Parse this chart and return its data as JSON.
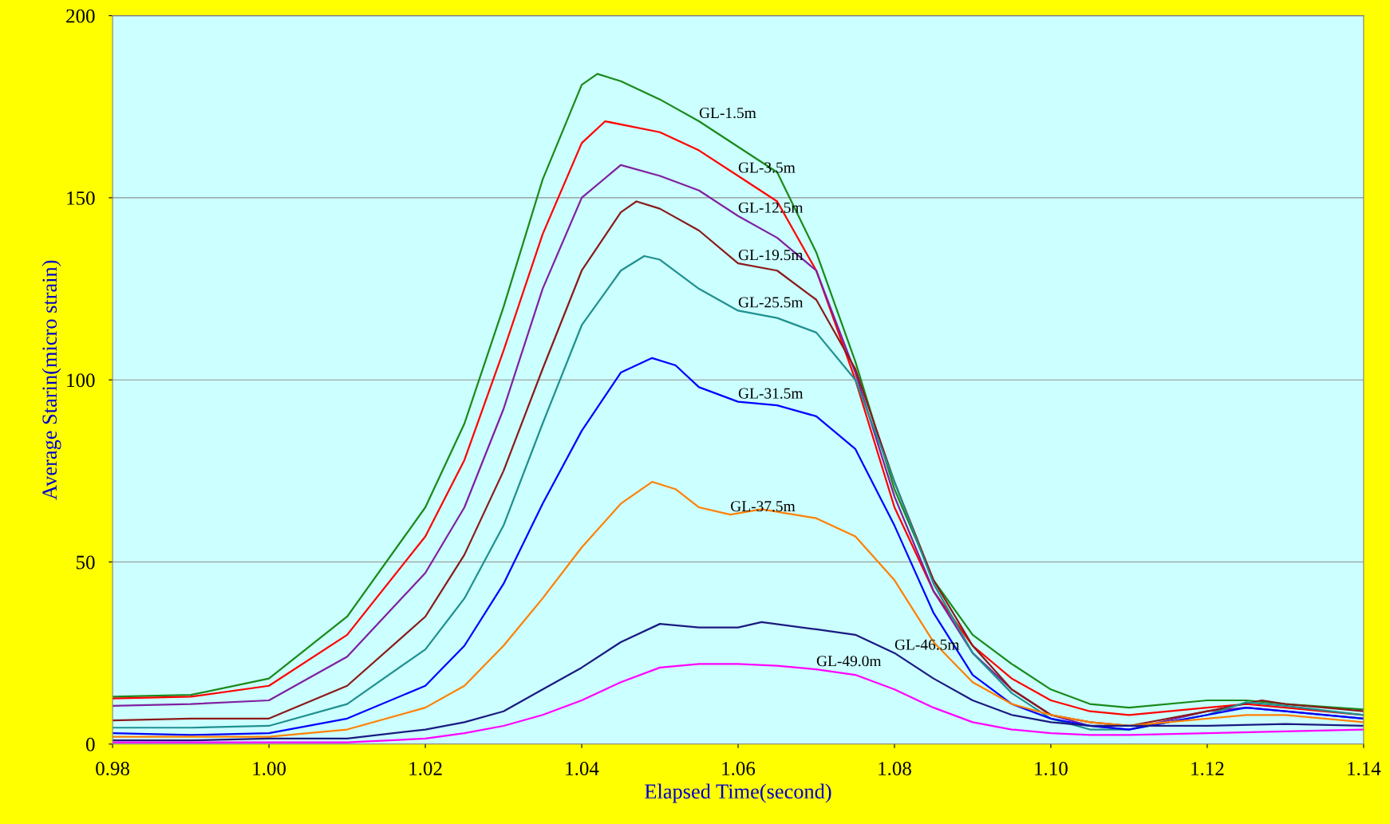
{
  "chart_data": {
    "type": "line",
    "xlabel": "Elapsed Time(second)",
    "ylabel": "Average Starin(micro strain)",
    "xlim": [
      0.98,
      1.14
    ],
    "ylim": [
      0,
      200
    ],
    "xticks": [
      {
        "value": 0.98,
        "label": "0.98"
      },
      {
        "value": 1.0,
        "label": "1.00"
      },
      {
        "value": 1.02,
        "label": "1.02"
      },
      {
        "value": 1.04,
        "label": "1.04"
      },
      {
        "value": 1.06,
        "label": "1.06"
      },
      {
        "value": 1.08,
        "label": "1.08"
      },
      {
        "value": 1.1,
        "label": "1.10"
      },
      {
        "value": 1.12,
        "label": "1.12"
      },
      {
        "value": 1.14,
        "label": "1.14"
      }
    ],
    "yticks": [
      0,
      50,
      100,
      150,
      200
    ],
    "grid": "y",
    "legend": false,
    "marker": "none",
    "line_style": "solid",
    "series": [
      {
        "name": "GL-1.5m",
        "color": "#1a8a1a",
        "x": [
          0.98,
          0.99,
          1.0,
          1.01,
          1.02,
          1.025,
          1.03,
          1.035,
          1.04,
          1.042,
          1.045,
          1.05,
          1.055,
          1.06,
          1.065,
          1.07,
          1.075,
          1.08,
          1.085,
          1.09,
          1.095,
          1.1,
          1.105,
          1.11,
          1.12,
          1.125,
          1.13,
          1.14
        ],
        "values": [
          13,
          13.5,
          18,
          35,
          65,
          88,
          120,
          155,
          181,
          184,
          182,
          177,
          171,
          164,
          157,
          135,
          105,
          70,
          45,
          30,
          22,
          15,
          11,
          10,
          12,
          12,
          11,
          9.5
        ]
      },
      {
        "name": "GL-3.5m",
        "color": "#ff0000",
        "x": [
          0.98,
          0.99,
          1.0,
          1.01,
          1.02,
          1.025,
          1.03,
          1.035,
          1.04,
          1.043,
          1.05,
          1.055,
          1.06,
          1.065,
          1.07,
          1.075,
          1.08,
          1.085,
          1.09,
          1.095,
          1.1,
          1.105,
          1.11,
          1.12,
          1.125,
          1.13,
          1.14
        ],
        "values": [
          12.5,
          13,
          16,
          30,
          57,
          78,
          108,
          140,
          165,
          171,
          168,
          163,
          156,
          149,
          130,
          100,
          65,
          42,
          27,
          18,
          12,
          9,
          8,
          10,
          11,
          10,
          8
        ]
      },
      {
        "name": "GL-12.5m",
        "color": "#8020a0",
        "x": [
          0.98,
          0.99,
          1.0,
          1.01,
          1.02,
          1.025,
          1.03,
          1.035,
          1.04,
          1.045,
          1.05,
          1.055,
          1.06,
          1.065,
          1.07,
          1.075,
          1.08,
          1.085,
          1.09,
          1.095,
          1.1,
          1.105,
          1.11,
          1.12,
          1.125,
          1.13,
          1.14
        ],
        "values": [
          10.5,
          11,
          12,
          24,
          47,
          65,
          92,
          125,
          150,
          159,
          156,
          152,
          145,
          139,
          130,
          102,
          68,
          42,
          25,
          15,
          8,
          5,
          4,
          9,
          10,
          9,
          7
        ]
      },
      {
        "name": "GL-19.5m",
        "color": "#8b1a1a",
        "x": [
          0.98,
          0.99,
          1.0,
          1.01,
          1.02,
          1.025,
          1.03,
          1.035,
          1.04,
          1.045,
          1.047,
          1.05,
          1.055,
          1.06,
          1.065,
          1.07,
          1.075,
          1.08,
          1.085,
          1.09,
          1.095,
          1.1,
          1.105,
          1.11,
          1.12,
          1.127,
          1.13,
          1.14
        ],
        "values": [
          6.5,
          7,
          7,
          16,
          35,
          52,
          75,
          103,
          130,
          146,
          149,
          147,
          141,
          132,
          130,
          122,
          103,
          72,
          45,
          27,
          15,
          8,
          6,
          5,
          9,
          12,
          11,
          9
        ]
      },
      {
        "name": "GL-25.5m",
        "color": "#209090",
        "x": [
          0.98,
          0.99,
          1.0,
          1.01,
          1.02,
          1.025,
          1.03,
          1.035,
          1.04,
          1.045,
          1.048,
          1.05,
          1.055,
          1.06,
          1.065,
          1.07,
          1.075,
          1.08,
          1.085,
          1.09,
          1.095,
          1.1,
          1.105,
          1.11,
          1.12,
          1.125,
          1.13,
          1.14
        ],
        "values": [
          4.5,
          4.5,
          5,
          11,
          26,
          40,
          60,
          88,
          115,
          130,
          134,
          133,
          125,
          119,
          117,
          113,
          100,
          72,
          44,
          25,
          14,
          7,
          4,
          4,
          8,
          11.5,
          10.5,
          8
        ]
      },
      {
        "name": "GL-31.5m",
        "color": "#0000ff",
        "x": [
          0.98,
          0.99,
          1.0,
          1.01,
          1.02,
          1.025,
          1.03,
          1.035,
          1.04,
          1.045,
          1.049,
          1.052,
          1.055,
          1.06,
          1.065,
          1.07,
          1.075,
          1.08,
          1.085,
          1.09,
          1.095,
          1.1,
          1.105,
          1.11,
          1.12,
          1.125,
          1.13,
          1.14
        ],
        "values": [
          3,
          2.5,
          3,
          7,
          16,
          27,
          44,
          66,
          86,
          102,
          106,
          104,
          98,
          94,
          93,
          90,
          81,
          60,
          36,
          19,
          11,
          7,
          5,
          4,
          8,
          10,
          9,
          7
        ]
      },
      {
        "name": "GL-37.5m",
        "color": "#ff8000",
        "x": [
          0.98,
          0.99,
          1.0,
          1.01,
          1.02,
          1.025,
          1.03,
          1.035,
          1.04,
          1.045,
          1.049,
          1.052,
          1.055,
          1.059,
          1.063,
          1.07,
          1.075,
          1.08,
          1.085,
          1.09,
          1.095,
          1.1,
          1.105,
          1.11,
          1.12,
          1.125,
          1.13,
          1.14
        ],
        "values": [
          2,
          2,
          2,
          4,
          10,
          16,
          27,
          40,
          54,
          66,
          72,
          70,
          65,
          63,
          64.5,
          62,
          57,
          45,
          28,
          17,
          11,
          8,
          6,
          5,
          7,
          8,
          8,
          6
        ]
      },
      {
        "name": "GL-46.5m",
        "color": "#1a1a80",
        "x": [
          0.98,
          0.99,
          1.0,
          1.01,
          1.02,
          1.025,
          1.03,
          1.035,
          1.04,
          1.045,
          1.05,
          1.055,
          1.06,
          1.063,
          1.07,
          1.075,
          1.08,
          1.085,
          1.09,
          1.095,
          1.1,
          1.105,
          1.11,
          1.12,
          1.13,
          1.14
        ],
        "values": [
          1,
          1,
          1.5,
          1.5,
          4,
          6,
          9,
          15,
          21,
          28,
          33,
          32,
          32,
          33.5,
          31.5,
          30,
          25,
          18,
          12,
          8,
          6,
          5,
          5,
          5,
          5.5,
          5
        ]
      },
      {
        "name": "GL-49.0m",
        "color": "#ff00ff",
        "x": [
          0.98,
          0.99,
          1.0,
          1.01,
          1.02,
          1.025,
          1.03,
          1.035,
          1.04,
          1.045,
          1.05,
          1.055,
          1.06,
          1.065,
          1.07,
          1.075,
          1.08,
          1.085,
          1.09,
          1.095,
          1.1,
          1.105,
          1.11,
          1.12,
          1.13,
          1.14
        ],
        "values": [
          0.5,
          0.5,
          0.5,
          0.5,
          1.5,
          3,
          5,
          8,
          12,
          17,
          21,
          22,
          22,
          21.5,
          20.5,
          19,
          15,
          10,
          6,
          4,
          3,
          2.5,
          2.5,
          3,
          3.5,
          4
        ]
      }
    ]
  }
}
